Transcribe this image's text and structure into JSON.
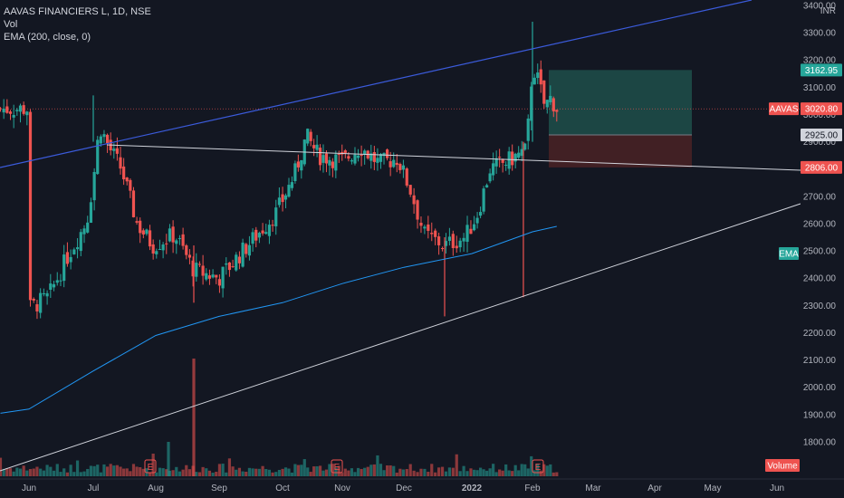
{
  "legend": {
    "title": "AAVAS FINANCIERS L, 1D, NSE",
    "vol": "Vol",
    "ema": "EMA (200, close, 0)"
  },
  "colors": {
    "background": "#131722",
    "up": "#26a69a",
    "down": "#ef5350",
    "ema": "#2196f3",
    "channel_top": "#3b5bdb",
    "trendline": "#d1d4dc",
    "profit_zone": "#1f4f4a",
    "loss_zone": "#4a2225"
  },
  "chart_data": {
    "type": "candlestick",
    "symbol": "AAVAS",
    "currency": "INR",
    "ylim": [
      1770,
      3510
    ],
    "y_ticks": [
      1800,
      1900,
      2000,
      2100,
      2200,
      2300,
      2400,
      2500,
      2600,
      2700,
      2800,
      2900,
      3000,
      3100,
      3200,
      3300,
      3400,
      3500
    ],
    "x_ticks": [
      "Jun",
      "Jul",
      "Aug",
      "Sep",
      "Oct",
      "Nov",
      "Dec",
      "2022",
      "Feb",
      "Mar",
      "Apr",
      "May",
      "Jun"
    ],
    "key_closes": [
      {
        "month": "Jun",
        "price": 2290
      },
      {
        "month": "Jul",
        "price": 2940
      },
      {
        "month": "Aug",
        "price": 2550
      },
      {
        "month": "Sep",
        "price": 2400
      },
      {
        "month": "Oct",
        "price": 2650
      },
      {
        "month": "Nov",
        "price": 2850
      },
      {
        "month": "Dec",
        "price": 2600
      },
      {
        "month": "2022",
        "price": 2820
      },
      {
        "month": "Feb",
        "price": 3180
      },
      {
        "month": "Feb-mid",
        "price": 3020.8
      }
    ],
    "ema_200": [
      {
        "month": "Jun",
        "value": 1920
      },
      {
        "month": "Jul",
        "value": 2060
      },
      {
        "month": "Aug",
        "value": 2190
      },
      {
        "month": "Sep",
        "value": 2260
      },
      {
        "month": "Oct",
        "value": 2310
      },
      {
        "month": "Nov",
        "value": 2380
      },
      {
        "month": "Dec",
        "value": 2440
      },
      {
        "month": "2022",
        "value": 2490
      },
      {
        "month": "Feb",
        "value": 2570
      },
      {
        "month": "Feb-mid",
        "value": 2590
      }
    ],
    "price_labels": [
      {
        "label": "3162.95",
        "kind": "target"
      },
      {
        "label": "3020.80",
        "kind": "last",
        "prefix": "AAVAS"
      },
      {
        "label": "2925.00",
        "kind": "entry"
      },
      {
        "label": "2806.00",
        "kind": "stop"
      }
    ],
    "indicator_tags": [
      "EMA",
      "Volume"
    ],
    "earnings_markers": [
      "E",
      "E",
      "E"
    ]
  }
}
